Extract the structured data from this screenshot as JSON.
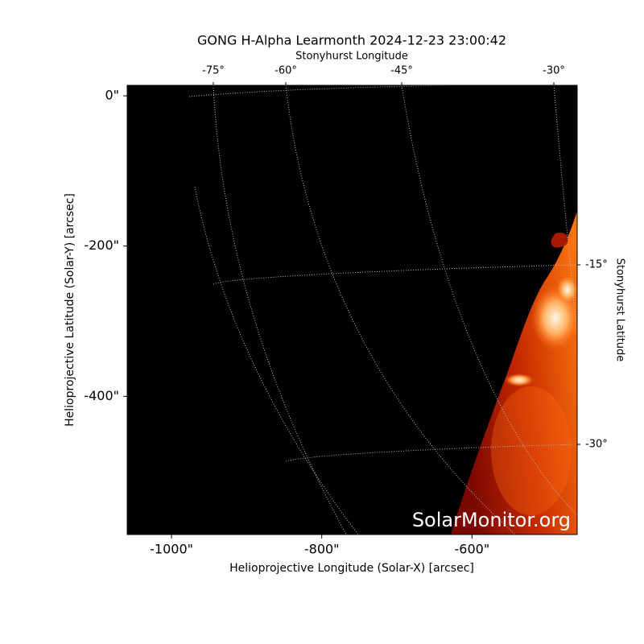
{
  "chart_data": {
    "type": "image",
    "title": "GONG H-Alpha Learmonth 2024-12-23 23:00:42",
    "xlabel": "Helioprojective Longitude (Solar-X) [arcsec]",
    "ylabel": "Helioprojective Latitude (Solar-Y) [arcsec]",
    "xlim": [
      -1059,
      -460
    ],
    "ylim": [
      -584,
      14
    ],
    "xticks": [
      {
        "value": -1000,
        "label": "-1000\""
      },
      {
        "value": -800,
        "label": "-800\""
      },
      {
        "value": -600,
        "label": "-600\""
      }
    ],
    "yticks": [
      {
        "value": 0,
        "label": "0\""
      },
      {
        "value": -200,
        "label": "-200\""
      },
      {
        "value": -400,
        "label": "-400\""
      }
    ],
    "top_axis": {
      "label": "Stonyhurst Longitude",
      "ticks": [
        "-75°",
        "-60°",
        "-45°",
        "-30°"
      ]
    },
    "right_axis": {
      "label": "Stonyhurst Latitude",
      "ticks": [
        "-15°",
        "-30°"
      ]
    },
    "watermark": "SolarMonitor.org"
  }
}
